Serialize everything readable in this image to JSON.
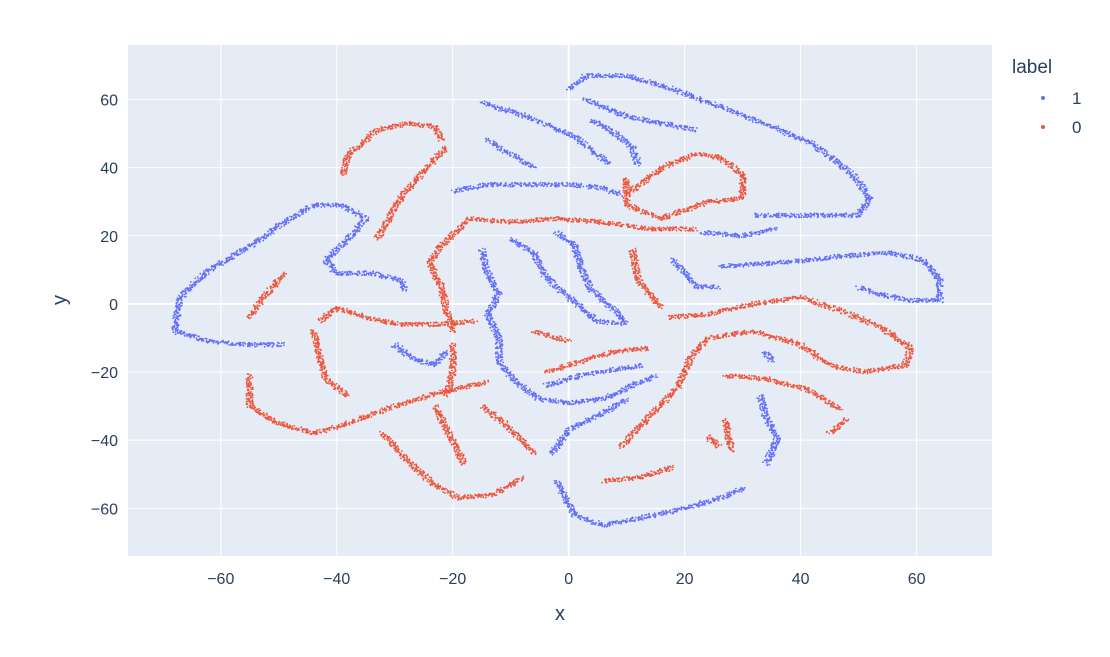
{
  "chart_data": {
    "type": "scatter",
    "title": "",
    "xlabel": "x",
    "ylabel": "y",
    "xlim": [
      -76,
      73
    ],
    "ylim": [
      -74,
      76
    ],
    "x_ticks": [
      -60,
      -40,
      -20,
      0,
      20,
      40,
      60
    ],
    "y_ticks": [
      -60,
      -40,
      -20,
      0,
      20,
      40,
      60
    ],
    "x_tick_labels": [
      "−60",
      "−40",
      "−20",
      "0",
      "20",
      "40",
      "60"
    ],
    "y_tick_labels": [
      "−60",
      "−40",
      "−20",
      "0",
      "20",
      "40",
      "60"
    ],
    "grid": true,
    "legend": {
      "title": "label",
      "placement": "top-right outside"
    },
    "plot_bgcolor": "#e5ecf6",
    "series": [
      {
        "name": "1",
        "color": "#636efa",
        "curves": [
          [
            [
              -68,
              -8
            ],
            [
              -67,
              2
            ],
            [
              -62,
              10
            ],
            [
              -55,
              17
            ],
            [
              -49,
              24
            ],
            [
              -44,
              29
            ],
            [
              -39,
              29
            ],
            [
              -35,
              25
            ],
            [
              -38,
              19
            ],
            [
              -42,
              13
            ],
            [
              -40,
              9
            ],
            [
              -34,
              9
            ],
            [
              -29,
              7
            ],
            [
              -28,
              4
            ]
          ],
          [
            [
              -68,
              -8
            ],
            [
              -62,
              -11
            ],
            [
              -55,
              -12
            ],
            [
              -49,
              -12
            ]
          ],
          [
            [
              -15,
              59
            ],
            [
              -9,
              56
            ],
            [
              -3,
              52
            ],
            [
              1,
              49
            ],
            [
              4,
              45
            ],
            [
              7,
              41
            ]
          ],
          [
            [
              -14,
              48
            ],
            [
              -11,
              45
            ],
            [
              -8,
              42
            ],
            [
              -6,
              40
            ]
          ],
          [
            [
              -20,
              33
            ],
            [
              -14,
              35
            ],
            [
              -7,
              35
            ],
            [
              0,
              35
            ],
            [
              6,
              34
            ],
            [
              9,
              32
            ]
          ],
          [
            [
              -15,
              16
            ],
            [
              -14,
              9
            ],
            [
              -12,
              3
            ],
            [
              -14,
              -3
            ],
            [
              -12,
              -10
            ],
            [
              -12,
              -17
            ],
            [
              -9,
              -23
            ],
            [
              -5,
              -28
            ],
            [
              0,
              -29
            ],
            [
              6,
              -28
            ],
            [
              11,
              -24
            ],
            [
              15,
              -21
            ]
          ],
          [
            [
              -10,
              19
            ],
            [
              -6,
              15
            ],
            [
              -4,
              8
            ],
            [
              0,
              2
            ],
            [
              5,
              -5
            ],
            [
              9,
              -6
            ]
          ],
          [
            [
              -2,
              21
            ],
            [
              1,
              17
            ],
            [
              2,
              11
            ],
            [
              4,
              4
            ],
            [
              8,
              -2
            ],
            [
              10,
              -6
            ]
          ],
          [
            [
              -4,
              -24
            ],
            [
              2,
              -21
            ],
            [
              9,
              -19
            ],
            [
              13,
              -18
            ]
          ],
          [
            [
              0,
              63
            ],
            [
              3,
              67
            ],
            [
              10,
              67
            ],
            [
              18,
              63
            ],
            [
              26,
              58
            ],
            [
              35,
              52
            ],
            [
              42,
              47
            ],
            [
              49,
              38
            ],
            [
              52,
              31
            ],
            [
              50,
              26
            ],
            [
              44,
              26
            ],
            [
              37,
              26
            ],
            [
              32,
              26
            ]
          ],
          [
            [
              3,
              60
            ],
            [
              10,
              55
            ],
            [
              16,
              53
            ],
            [
              22,
              51
            ]
          ],
          [
            [
              4,
              54
            ],
            [
              8,
              50
            ],
            [
              11,
              46
            ],
            [
              12,
              41
            ]
          ],
          [
            [
              18,
              13
            ],
            [
              20,
              9
            ],
            [
              22,
              5
            ],
            [
              26,
              5
            ]
          ],
          [
            [
              23,
              21
            ],
            [
              30,
              20
            ],
            [
              36,
              22
            ]
          ],
          [
            [
              26,
              11
            ],
            [
              36,
              12
            ],
            [
              47,
              14
            ],
            [
              55,
              15
            ],
            [
              61,
              13
            ],
            [
              64,
              7
            ],
            [
              64,
              1
            ],
            [
              59,
              1
            ],
            [
              53,
              3
            ],
            [
              50,
              5
            ]
          ],
          [
            [
              -3,
              -44
            ],
            [
              0,
              -37
            ],
            [
              6,
              -32
            ],
            [
              10,
              -28
            ]
          ],
          [
            [
              -2,
              -52
            ],
            [
              1,
              -62
            ],
            [
              6,
              -65
            ],
            [
              12,
              -63
            ],
            [
              20,
              -60
            ],
            [
              28,
              -56
            ],
            [
              30,
              -54
            ]
          ],
          [
            [
              -30,
              -12
            ],
            [
              -27,
              -16
            ],
            [
              -23,
              -18
            ],
            [
              -21,
              -14
            ]
          ],
          [
            [
              33,
              -27
            ],
            [
              34,
              -33
            ],
            [
              36,
              -40
            ],
            [
              34,
              -47
            ]
          ],
          [
            [
              34,
              -14
            ],
            [
              35,
              -17
            ]
          ]
        ]
      },
      {
        "name": "0",
        "color": "#ef553b",
        "curves": [
          [
            [
              -39,
              38
            ],
            [
              -38,
              44
            ],
            [
              -33,
              51
            ],
            [
              -28,
              53
            ],
            [
              -23,
              52
            ],
            [
              -22,
              48
            ]
          ],
          [
            [
              -21,
              46
            ],
            [
              -25,
              39
            ],
            [
              -29,
              31
            ],
            [
              -33,
              19
            ]
          ],
          [
            [
              -55,
              -4
            ],
            [
              -53,
              1
            ],
            [
              -51,
              5
            ],
            [
              -49,
              9
            ]
          ],
          [
            [
              -22,
              17
            ],
            [
              -24,
              12
            ],
            [
              -22,
              5
            ],
            [
              -21,
              -2
            ],
            [
              -20,
              -8
            ]
          ],
          [
            [
              -22,
              17
            ],
            [
              -17,
              25
            ],
            [
              -10,
              24
            ],
            [
              -2,
              25
            ],
            [
              6,
              24
            ],
            [
              14,
              22
            ],
            [
              22,
              22
            ]
          ],
          [
            [
              -43,
              -5
            ],
            [
              -40,
              -1
            ],
            [
              -35,
              -4
            ],
            [
              -29,
              -6
            ],
            [
              -22,
              -6
            ],
            [
              -16,
              -5
            ]
          ],
          [
            [
              -44,
              -8
            ],
            [
              -43,
              -15
            ],
            [
              -42,
              -22
            ],
            [
              -38,
              -27
            ]
          ],
          [
            [
              -55,
              -21
            ],
            [
              -55,
              -30
            ],
            [
              -50,
              -35
            ],
            [
              -44,
              -38
            ],
            [
              -38,
              -35
            ],
            [
              -30,
              -30
            ],
            [
              -22,
              -26
            ],
            [
              -14,
              -23
            ]
          ],
          [
            [
              -20,
              -12
            ],
            [
              -20,
              -20
            ],
            [
              -21,
              -27
            ]
          ],
          [
            [
              -32,
              -38
            ],
            [
              -29,
              -44
            ],
            [
              -24,
              -52
            ],
            [
              -19,
              -57
            ],
            [
              -13,
              -56
            ],
            [
              -8,
              -51
            ]
          ],
          [
            [
              -23,
              -30
            ],
            [
              -21,
              -37
            ],
            [
              -18,
              -47
            ]
          ],
          [
            [
              -15,
              -30
            ],
            [
              -11,
              -35
            ],
            [
              -6,
              -44
            ]
          ],
          [
            [
              -6,
              -8
            ],
            [
              0,
              -11
            ]
          ],
          [
            [
              -4,
              -20
            ],
            [
              2,
              -17
            ],
            [
              8,
              -14
            ],
            [
              14,
              -13
            ]
          ],
          [
            [
              10,
              32
            ],
            [
              16,
              40
            ],
            [
              22,
              44
            ],
            [
              26,
              43
            ],
            [
              30,
              38
            ],
            [
              30,
              31
            ],
            [
              24,
              30
            ],
            [
              16,
              25
            ],
            [
              10,
              29
            ],
            [
              10,
              37
            ]
          ],
          [
            [
              11,
              16
            ],
            [
              12,
              7
            ],
            [
              16,
              -1
            ]
          ],
          [
            [
              17,
              -4
            ],
            [
              24,
              -3
            ],
            [
              32,
              0
            ],
            [
              40,
              2
            ],
            [
              47,
              -2
            ],
            [
              54,
              -7
            ],
            [
              59,
              -13
            ],
            [
              58,
              -18
            ],
            [
              51,
              -20
            ],
            [
              45,
              -18
            ],
            [
              40,
              -12
            ],
            [
              32,
              -8
            ],
            [
              24,
              -10
            ],
            [
              21,
              -16
            ],
            [
              19,
              -24
            ],
            [
              14,
              -33
            ],
            [
              9,
              -42
            ]
          ],
          [
            [
              27,
              -21
            ],
            [
              34,
              -22
            ],
            [
              41,
              -25
            ],
            [
              47,
              -31
            ]
          ],
          [
            [
              27,
              -34
            ],
            [
              28,
              -43
            ]
          ],
          [
            [
              24,
              -39
            ],
            [
              26,
              -42
            ]
          ],
          [
            [
              6,
              -52
            ],
            [
              12,
              -51
            ],
            [
              18,
              -48
            ]
          ],
          [
            [
              45,
              -38
            ],
            [
              48,
              -34
            ]
          ]
        ]
      }
    ]
  }
}
